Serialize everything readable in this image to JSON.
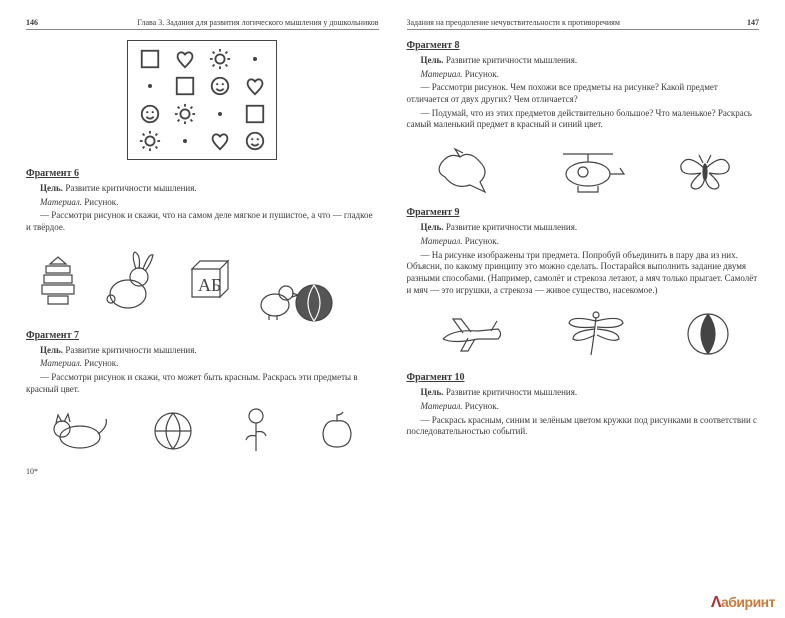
{
  "left": {
    "page_num": "146",
    "chapter": "Глава 3. Задания для развития логического мышления у дошкольников",
    "grid": {
      "cells": [
        "square",
        "heart",
        "sun",
        "dot",
        "dot",
        "square",
        "smiley",
        "heart",
        "smiley",
        "sun",
        "dot",
        "square",
        "sun",
        "dot",
        "heart",
        "smiley"
      ],
      "stroke": "#444"
    },
    "frag6": {
      "title": "Фрагмент 6",
      "l1a": "Цель.",
      "l1b": " Развитие критичности мышления.",
      "l2a": "Материал.",
      "l2b": " Рисунок.",
      "l3": "— Рассмотри рисунок и скажи, что на самом деле мягкое и пушистое, а что — гладкое и твёрдое."
    },
    "frag7": {
      "title": "Фрагмент 7",
      "l1a": "Цель.",
      "l1b": " Развитие критичности мышления.",
      "l2a": "Материал.",
      "l2b": " Рисунок.",
      "l3": "— Рассмотри рисунок и скажи, что может быть красным. Раскрась эти предметы в красный цвет."
    },
    "footnote": "10*"
  },
  "right": {
    "page_num": "147",
    "chapter": "Задания на преодоление нечувствительности к противоречиям",
    "frag8": {
      "title": "Фрагмент 8",
      "l1a": "Цель.",
      "l1b": " Развитие критичности мышления.",
      "l2a": "Материал.",
      "l2b": " Рисунок.",
      "l3": "— Рассмотри рисунок. Чем похожи все предметы на рисунке? Какой предмет отличается от двух других? Чем отличается?",
      "l4": "— Подумай, что из этих предметов действительно большое? Что маленькое? Раскрась самый маленький предмет в красный и синий цвет."
    },
    "frag9": {
      "title": "Фрагмент 9",
      "l1a": "Цель.",
      "l1b": " Развитие критичности мышления.",
      "l2a": "Материал.",
      "l2b": " Рисунок.",
      "l3": "— На рисунке изображены три предмета. Попробуй объединить в пару два из них. Объясни, по какому принципу это можно сделать. Постарайся выполнить задание двумя разными способами. (Например, самолёт и стрекоза летают, а мяч только прыгает. Самолёт и мяч — это игрушки, а стрекоза — живое существо, насекомое.)"
    },
    "frag10": {
      "title": "Фрагмент 10",
      "l1a": "Цель.",
      "l1b": " Развитие критичности мышления.",
      "l2a": "Материал.",
      "l2b": " Рисунок.",
      "l3": "— Раскрась красным, синим и зелёным цветом кружки под рисунками в соответствии с последовательностью событий."
    }
  },
  "watermark": {
    "logo": "Λ",
    "text": "абиринт"
  }
}
